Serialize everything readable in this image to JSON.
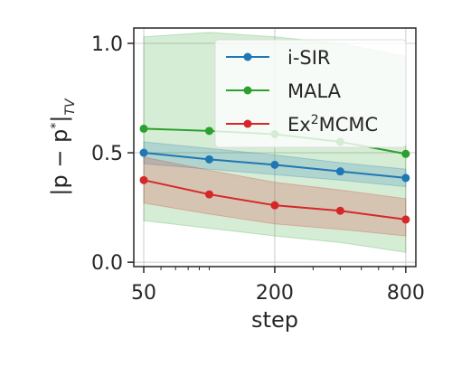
{
  "chart_data": {
    "type": "line",
    "title": "",
    "xlabel": "step",
    "ylabel_main": "|p − p",
    "ylabel_sup": "*",
    "ylabel_end": "|",
    "ylabel_sub": "TV",
    "xscale": "log",
    "xlim": [
      45,
      890
    ],
    "ylim": [
      -0.02,
      1.07
    ],
    "x": [
      50,
      100,
      200,
      400,
      800
    ],
    "xticks": [
      {
        "value": 50,
        "label": "50"
      },
      {
        "value": 200,
        "label": "200"
      },
      {
        "value": 800,
        "label": "800"
      }
    ],
    "yticks": [
      {
        "value": 0.0,
        "label": "0.0"
      },
      {
        "value": 0.5,
        "label": "0.5"
      },
      {
        "value": 1.0,
        "label": "1.0"
      }
    ],
    "grid": true,
    "legend_position": "top-right",
    "series": [
      {
        "name": "MALA",
        "color": "#2ca02c",
        "values": [
          0.61,
          0.6,
          0.585,
          0.55,
          0.495
        ],
        "band_upper": [
          1.03,
          1.05,
          1.03,
          1.0,
          0.94
        ],
        "band_lower": [
          0.19,
          0.155,
          0.12,
          0.09,
          0.045
        ]
      },
      {
        "name": "i-SIR",
        "color": "#1f77b4",
        "values": [
          0.5,
          0.47,
          0.445,
          0.415,
          0.385
        ],
        "band_upper": [
          0.55,
          0.52,
          0.49,
          0.455,
          0.425
        ],
        "band_lower": [
          0.45,
          0.425,
          0.4,
          0.375,
          0.345
        ]
      },
      {
        "name": "Ex²MCMC",
        "legend_base": "Ex",
        "legend_sup": "2",
        "legend_end": "MCMC",
        "color": "#d62728",
        "values": [
          0.375,
          0.31,
          0.26,
          0.235,
          0.195
        ],
        "band_upper": [
          0.48,
          0.42,
          0.365,
          0.33,
          0.29
        ],
        "band_lower": [
          0.27,
          0.22,
          0.175,
          0.15,
          0.12
        ]
      }
    ],
    "legend_order": [
      "i-SIR",
      "MALA",
      "Ex²MCMC"
    ]
  }
}
